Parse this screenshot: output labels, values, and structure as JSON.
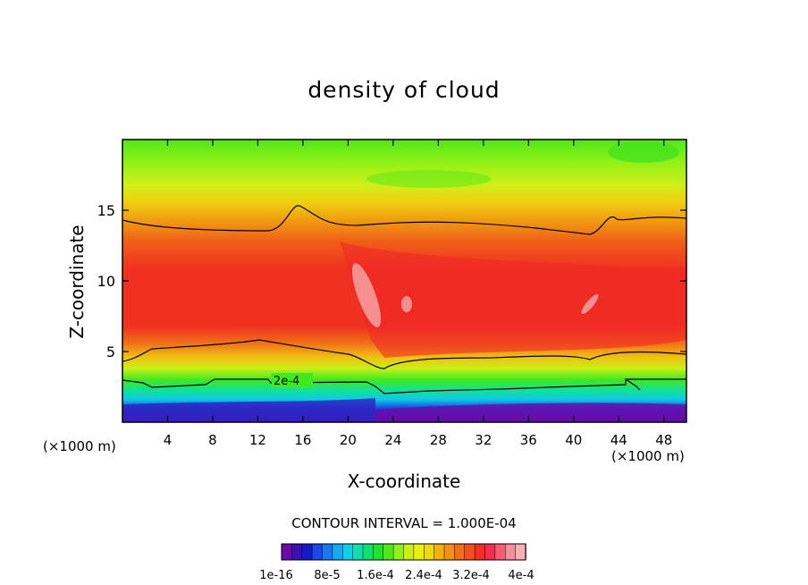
{
  "chart_data": {
    "type": "heatmap",
    "title": "density of cloud",
    "xlabel": "X-coordinate",
    "ylabel": "Z-coordinate",
    "x_unit": "(×1000 m)",
    "y_unit": "(×1000 m)",
    "xlim": [
      0,
      50
    ],
    "ylim": [
      0,
      20
    ],
    "x_ticks": [
      4,
      8,
      12,
      16,
      20,
      24,
      28,
      32,
      36,
      40,
      44,
      48
    ],
    "y_ticks": [
      5,
      10,
      15
    ],
    "contour_interval_text": "CONTOUR INTERVAL = 1.000E-04",
    "contour_label": "2e-4",
    "colorbar": {
      "colors": [
        "#6a0aa8",
        "#3a10b0",
        "#1818c8",
        "#1848e0",
        "#1a78f0",
        "#16a8f0",
        "#10d0e8",
        "#10e0b0",
        "#10e070",
        "#20e030",
        "#50e818",
        "#90f018",
        "#c8f018",
        "#e8f010",
        "#f0d810",
        "#f0b010",
        "#f09018",
        "#f07018",
        "#f05020",
        "#f03020",
        "#f03050",
        "#f06070",
        "#f09098",
        "#f8b0b8"
      ],
      "labels": [
        "1e-16",
        "8e-5",
        "1.6e-4",
        "2.4e-4",
        "3.2e-4",
        "4e-4"
      ]
    }
  }
}
